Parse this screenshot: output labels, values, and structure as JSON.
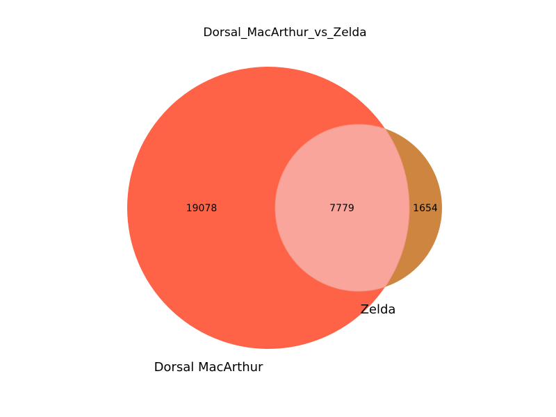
{
  "chart_data": {
    "type": "venn",
    "title": "Dorsal_MacArthur_vs_Zelda",
    "sets": [
      {
        "name": "Dorsal MacArthur",
        "color": "#ff6347"
      },
      {
        "name": "Zelda",
        "color": "#cd853f"
      }
    ],
    "regions": {
      "only_a": 19078,
      "both": 7779,
      "only_b": 1654
    },
    "colors": {
      "overlap": "#faa59b",
      "overlap_edge": "#f59483"
    }
  }
}
